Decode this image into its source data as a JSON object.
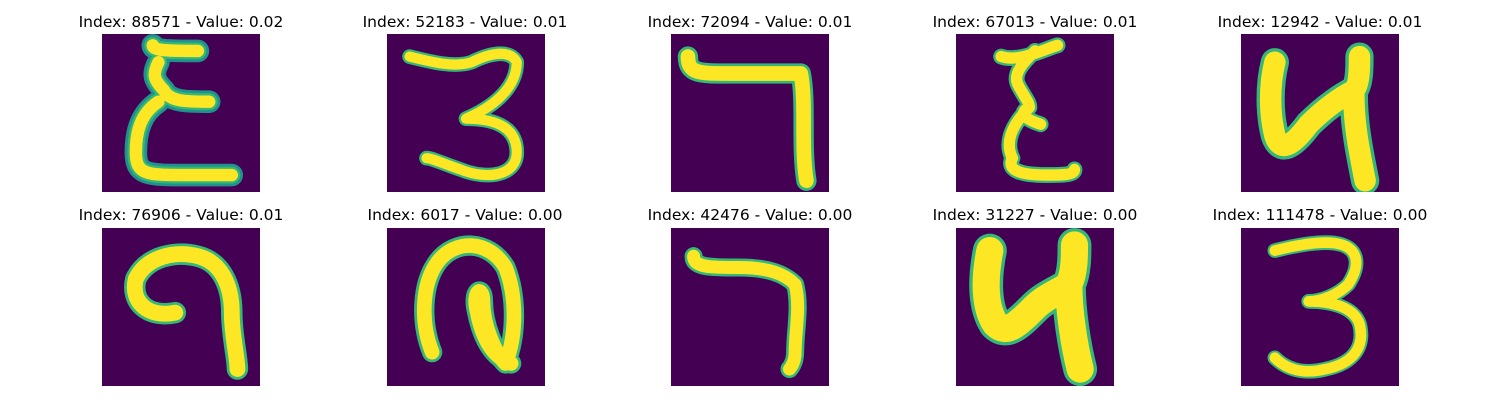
{
  "colors": {
    "background": "#440154",
    "stroke_core": "#fde725",
    "stroke_edge": "#35b779",
    "stroke_halo": "#21918c"
  },
  "panels": [
    {
      "title": "Index: 88571 - Value: 0.02",
      "glyph": "epsilon-like-shape"
    },
    {
      "title": "Index: 52183 - Value: 0.01",
      "glyph": "three-like-shape"
    },
    {
      "title": "Index: 72094 - Value: 0.01",
      "glyph": "seven-like-shape"
    },
    {
      "title": "Index: 67013 - Value: 0.01",
      "glyph": "z-epsilon-like-shape"
    },
    {
      "title": "Index: 12942 - Value: 0.01",
      "glyph": "u-like-shape"
    },
    {
      "title": "Index: 76906 - Value: 0.01",
      "glyph": "hook-like-shape"
    },
    {
      "title": "Index: 6017 - Value: 0.00",
      "glyph": "loop-like-shape"
    },
    {
      "title": "Index: 42476 - Value: 0.00",
      "glyph": "hook-seven-like-shape"
    },
    {
      "title": "Index: 31227 - Value: 0.00",
      "glyph": "bold-u-like-shape"
    },
    {
      "title": "Index: 111478 - Value: 0.00",
      "glyph": "three-like-shape"
    }
  ]
}
